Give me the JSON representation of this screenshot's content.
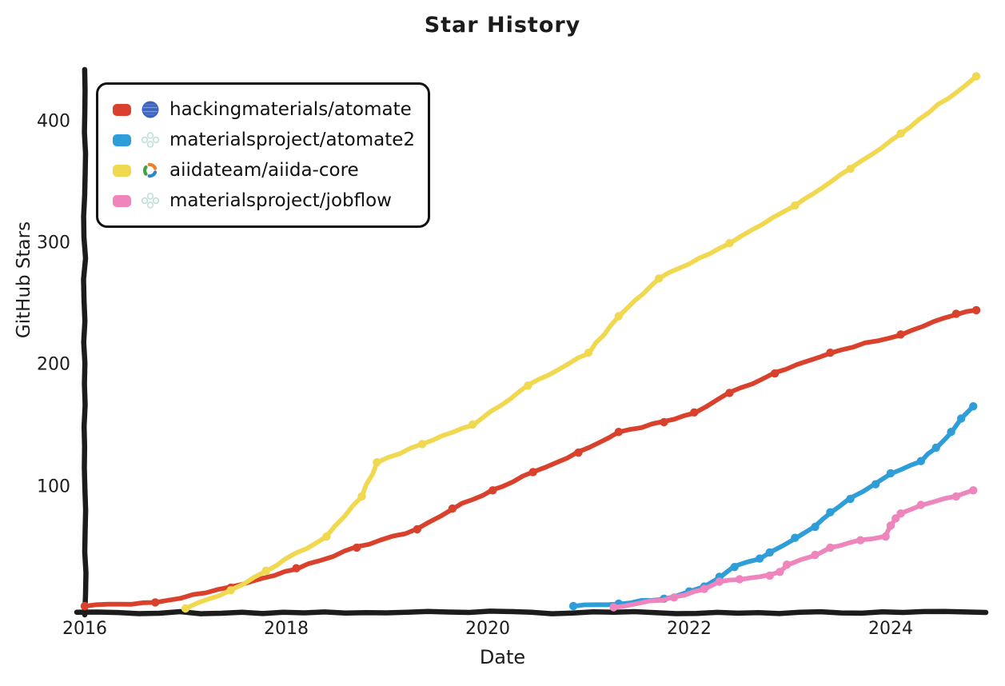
{
  "title": "Star History",
  "axes": {
    "x_label": "Date",
    "y_label": "GitHub Stars"
  },
  "colors": {
    "axis": "#1c1c1c",
    "background": "#ffffff"
  },
  "chart_data": {
    "type": "line",
    "title": "Star History",
    "xlabel": "Date",
    "ylabel": "GitHub Stars",
    "x_ticks": [
      2016,
      2018,
      2020,
      2022,
      2024
    ],
    "y_ticks": [
      100,
      200,
      300,
      400
    ],
    "xlim": [
      2015.95,
      2025.0
    ],
    "ylim": [
      0,
      445
    ],
    "grid": false,
    "legend_position": "top-left",
    "series": [
      {
        "name": "hackingmaterials/atomate",
        "color": "#d9412c",
        "avatar_icon": "globe-avatar",
        "points": [
          [
            2016.0,
            2
          ],
          [
            2016.7,
            5
          ],
          [
            2017.45,
            17
          ],
          [
            2018.1,
            33
          ],
          [
            2018.7,
            50
          ],
          [
            2019.3,
            65
          ],
          [
            2019.65,
            82
          ],
          [
            2020.05,
            97
          ],
          [
            2020.45,
            112
          ],
          [
            2020.9,
            128
          ],
          [
            2021.3,
            145
          ],
          [
            2021.75,
            153
          ],
          [
            2022.05,
            161
          ],
          [
            2022.4,
            177
          ],
          [
            2022.85,
            193
          ],
          [
            2023.4,
            210
          ],
          [
            2024.1,
            225
          ],
          [
            2024.65,
            242
          ],
          [
            2024.85,
            245
          ]
        ]
      },
      {
        "name": "materialsproject/atomate2",
        "color": "#2f9ed8",
        "avatar_icon": "materialsproject-avatar",
        "points": [
          [
            2020.85,
            2
          ],
          [
            2021.3,
            4
          ],
          [
            2021.75,
            8
          ],
          [
            2022.0,
            14
          ],
          [
            2022.15,
            18
          ],
          [
            2022.3,
            26
          ],
          [
            2022.45,
            34
          ],
          [
            2022.7,
            41
          ],
          [
            2022.8,
            46
          ],
          [
            2023.05,
            58
          ],
          [
            2023.25,
            67
          ],
          [
            2023.4,
            79
          ],
          [
            2023.6,
            90
          ],
          [
            2023.85,
            102
          ],
          [
            2024.0,
            111
          ],
          [
            2024.3,
            121
          ],
          [
            2024.45,
            132
          ],
          [
            2024.6,
            145
          ],
          [
            2024.7,
            156
          ],
          [
            2024.82,
            166
          ]
        ]
      },
      {
        "name": "aiidateam/aiida-core",
        "color": "#f0d850",
        "avatar_icon": "aiida-avatar",
        "points": [
          [
            2017.0,
            0
          ],
          [
            2017.45,
            15
          ],
          [
            2017.8,
            31
          ],
          [
            2018.4,
            59
          ],
          [
            2018.75,
            92
          ],
          [
            2018.9,
            120
          ],
          [
            2019.35,
            135
          ],
          [
            2019.85,
            151
          ],
          [
            2020.4,
            183
          ],
          [
            2021.0,
            210
          ],
          [
            2021.3,
            240
          ],
          [
            2021.7,
            271
          ],
          [
            2022.4,
            300
          ],
          [
            2023.05,
            331
          ],
          [
            2023.6,
            361
          ],
          [
            2024.1,
            390
          ],
          [
            2024.85,
            437
          ]
        ]
      },
      {
        "name": "materialsproject/jobflow",
        "color": "#ee85bd",
        "avatar_icon": "materialsproject-avatar",
        "points": [
          [
            2021.25,
            1
          ],
          [
            2021.85,
            9
          ],
          [
            2022.15,
            16
          ],
          [
            2022.3,
            22
          ],
          [
            2022.5,
            24
          ],
          [
            2022.8,
            27
          ],
          [
            2022.9,
            30
          ],
          [
            2022.97,
            36
          ],
          [
            2023.25,
            44
          ],
          [
            2023.4,
            50
          ],
          [
            2023.7,
            56
          ],
          [
            2023.95,
            59
          ],
          [
            2024.0,
            68
          ],
          [
            2024.05,
            74
          ],
          [
            2024.1,
            78
          ],
          [
            2024.3,
            85
          ],
          [
            2024.65,
            92
          ],
          [
            2024.82,
            97
          ]
        ]
      }
    ]
  }
}
